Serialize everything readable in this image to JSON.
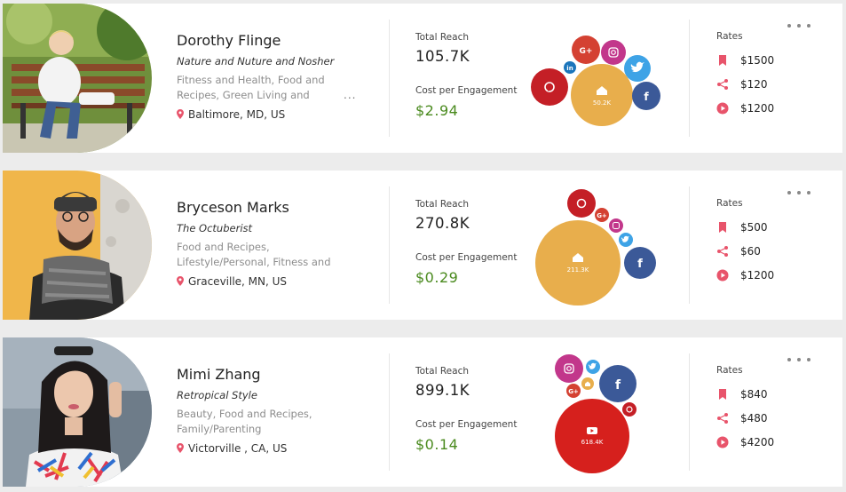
{
  "labels": {
    "total_reach": "Total Reach",
    "cost_per_engagement": "Cost per Engagement",
    "rates": "Rates",
    "more_ellipsis": "..."
  },
  "colors": {
    "green": "#4a8a1e",
    "rate_icon": "#e8546b",
    "home": "#e8ae4c",
    "facebook": "#3b5998",
    "twitter": "#3ea3e6",
    "instagram": "#c2378b",
    "googleplus": "#d44132",
    "linkedin": "#1b75bb",
    "pinterest": "#c41f26",
    "youtube": "#d6201d"
  },
  "influencers": [
    {
      "name": "Dorothy Flinge",
      "tagline": "Nature and Nuture and Nosher",
      "categories": "Fitness and Health, Food and Recipes, Green Living and",
      "location": "Baltimore, MD, US",
      "total_reach": "105.7K",
      "cpe": "$2.94",
      "main_bubble_value": "50.2K",
      "rates": [
        "$1500",
        "$120",
        "$1200"
      ]
    },
    {
      "name": "Bryceson Marks",
      "tagline": "The Octuberist",
      "categories": "Food and Recipes, Lifestyle/Personal, Fitness and Health",
      "location": "Graceville, MN, US",
      "total_reach": "270.8K",
      "cpe": "$0.29",
      "main_bubble_value": "211.3K",
      "rates": [
        "$500",
        "$60",
        "$1200"
      ]
    },
    {
      "name": "Mimi Zhang",
      "tagline": "Retropical Style",
      "categories": "Beauty, Food and Recipes, Family/Parenting",
      "location": "Victorville , CA, US",
      "total_reach": "899.1K",
      "cpe": "$0.14",
      "main_bubble_value": "618.4K",
      "rates": [
        "$840",
        "$480",
        "$4200"
      ]
    }
  ]
}
